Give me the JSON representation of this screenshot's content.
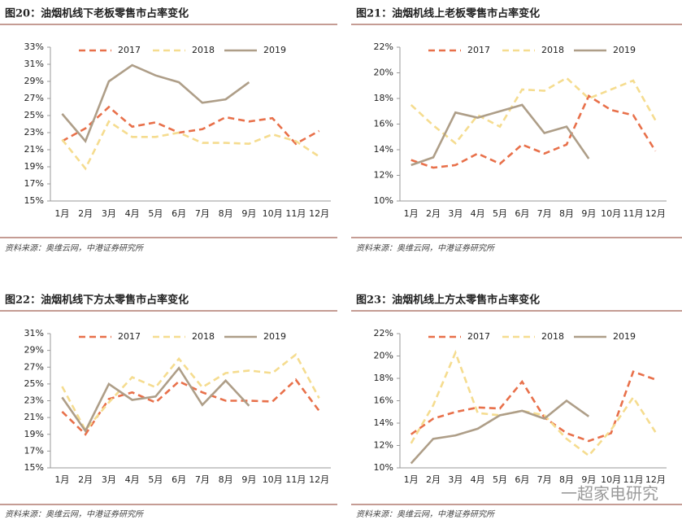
{
  "chart_data": [
    {
      "type": "line",
      "title": "图20：油烟机线下老板零售市占率变化",
      "source": "资料来源：奥维云网，中港证券研究所",
      "categories": [
        "1月",
        "2月",
        "3月",
        "4月",
        "5月",
        "6月",
        "7月",
        "8月",
        "9月",
        "10月",
        "11月",
        "12月"
      ],
      "ylim": [
        15,
        33
      ],
      "yticks": [
        {
          "value": 15,
          "label": "15%"
        },
        {
          "value": 17,
          "label": "17%"
        },
        {
          "value": 19,
          "label": "19%"
        },
        {
          "value": 21,
          "label": "21%"
        },
        {
          "value": 23,
          "label": "23%"
        },
        {
          "value": 25,
          "label": "25%"
        },
        {
          "value": 27,
          "label": "27%"
        },
        {
          "value": 29,
          "label": "29%"
        },
        {
          "value": 31,
          "label": "31%"
        },
        {
          "value": 33,
          "label": "33%"
        }
      ],
      "legend": "top",
      "series": [
        {
          "name": "2017",
          "color": "#e8704a",
          "dashed": true,
          "values": [
            22.0,
            23.5,
            26.0,
            23.7,
            24.2,
            23.0,
            23.4,
            24.8,
            24.3,
            24.7,
            21.7,
            23.2
          ]
        },
        {
          "name": "2018",
          "color": "#f5dc8f",
          "dashed": true,
          "values": [
            22.2,
            18.8,
            24.3,
            22.5,
            22.5,
            23.0,
            21.8,
            21.8,
            21.7,
            22.8,
            22.0,
            20.2
          ]
        },
        {
          "name": "2019",
          "color": "#ae9e88",
          "dashed": false,
          "values": [
            25.2,
            22.0,
            29.0,
            30.9,
            29.7,
            28.9,
            26.5,
            26.9,
            28.9,
            null,
            null,
            null
          ]
        }
      ]
    },
    {
      "type": "line",
      "title": "图21：油烟机线上老板零售市占率变化",
      "source": "资料来源：奥维云网，中港证券研究所",
      "categories": [
        "1月",
        "2月",
        "3月",
        "4月",
        "5月",
        "6月",
        "7月",
        "8月",
        "9月",
        "10月",
        "11月",
        "12月"
      ],
      "ylim": [
        10,
        22
      ],
      "yticks": [
        {
          "value": 10,
          "label": "10%"
        },
        {
          "value": 12,
          "label": "12%"
        },
        {
          "value": 14,
          "label": "14%"
        },
        {
          "value": 16,
          "label": "16%"
        },
        {
          "value": 18,
          "label": "18%"
        },
        {
          "value": 20,
          "label": "20%"
        },
        {
          "value": 22,
          "label": "22%"
        }
      ],
      "legend": "top",
      "series": [
        {
          "name": "2017",
          "color": "#e8704a",
          "dashed": true,
          "values": [
            13.2,
            12.6,
            12.8,
            13.7,
            12.9,
            14.4,
            13.7,
            14.4,
            18.2,
            17.1,
            16.7,
            13.9
          ]
        },
        {
          "name": "2018",
          "color": "#f5dc8f",
          "dashed": true,
          "values": [
            17.5,
            15.9,
            14.5,
            16.7,
            15.8,
            18.7,
            18.6,
            19.6,
            18.0,
            18.7,
            19.4,
            16.3
          ]
        },
        {
          "name": "2019",
          "color": "#ae9e88",
          "dashed": false,
          "values": [
            12.8,
            13.4,
            16.9,
            16.5,
            17.0,
            17.5,
            15.3,
            15.8,
            13.3,
            null,
            null,
            null
          ]
        }
      ]
    },
    {
      "type": "line",
      "title": "图22：油烟机线下方太零售市占率变化",
      "source": "资料来源：奥维云网，中港证券研究所",
      "categories": [
        "1月",
        "2月",
        "3月",
        "4月",
        "5月",
        "6月",
        "7月",
        "8月",
        "9月",
        "10月",
        "11月",
        "12月"
      ],
      "ylim": [
        15,
        31
      ],
      "yticks": [
        {
          "value": 15,
          "label": "15%"
        },
        {
          "value": 17,
          "label": "17%"
        },
        {
          "value": 19,
          "label": "19%"
        },
        {
          "value": 21,
          "label": "21%"
        },
        {
          "value": 23,
          "label": "23%"
        },
        {
          "value": 25,
          "label": "25%"
        },
        {
          "value": 27,
          "label": "27%"
        },
        {
          "value": 29,
          "label": "29%"
        },
        {
          "value": 31,
          "label": "31%"
        }
      ],
      "legend": "top",
      "series": [
        {
          "name": "2017",
          "color": "#e8704a",
          "dashed": true,
          "values": [
            21.7,
            19.0,
            23.2,
            24.0,
            22.8,
            25.3,
            24.0,
            23.0,
            23.0,
            22.9,
            25.5,
            21.8
          ]
        },
        {
          "name": "2018",
          "color": "#f5dc8f",
          "dashed": true,
          "values": [
            24.7,
            19.5,
            22.8,
            25.8,
            24.6,
            28.0,
            24.6,
            26.3,
            26.6,
            26.3,
            28.5,
            23.3
          ]
        },
        {
          "name": "2019",
          "color": "#ae9e88",
          "dashed": false,
          "values": [
            23.4,
            19.4,
            25.0,
            23.1,
            23.5,
            26.9,
            22.5,
            25.4,
            22.4,
            null,
            null,
            null
          ]
        }
      ]
    },
    {
      "type": "line",
      "title": "图23：油烟机线上方太零售市占率变化",
      "source": "资料来源：奥维云网，中港证券研究所",
      "categories": [
        "1月",
        "2月",
        "3月",
        "4月",
        "5月",
        "6月",
        "7月",
        "8月",
        "9月",
        "10月",
        "11月",
        "12月"
      ],
      "ylim": [
        10,
        22
      ],
      "yticks": [
        {
          "value": 10,
          "label": "10%"
        },
        {
          "value": 12,
          "label": "12%"
        },
        {
          "value": 14,
          "label": "14%"
        },
        {
          "value": 16,
          "label": "16%"
        },
        {
          "value": 18,
          "label": "18%"
        },
        {
          "value": 20,
          "label": "20%"
        },
        {
          "value": 22,
          "label": "22%"
        }
      ],
      "legend": "top",
      "series": [
        {
          "name": "2017",
          "color": "#e8704a",
          "dashed": true,
          "values": [
            13.0,
            14.4,
            15.0,
            15.4,
            15.3,
            17.7,
            14.5,
            13.1,
            12.4,
            13.1,
            18.6,
            17.9
          ]
        },
        {
          "name": "2018",
          "color": "#f5dc8f",
          "dashed": true,
          "values": [
            12.2,
            15.6,
            20.3,
            14.9,
            14.7,
            15.1,
            14.7,
            12.6,
            11.1,
            13.4,
            16.3,
            13.2
          ]
        },
        {
          "name": "2019",
          "color": "#ae9e88",
          "dashed": false,
          "values": [
            10.4,
            12.6,
            12.9,
            13.5,
            14.7,
            15.1,
            14.4,
            16.0,
            14.6,
            null,
            null,
            null
          ]
        }
      ]
    }
  ],
  "watermark": "一超家电研究"
}
